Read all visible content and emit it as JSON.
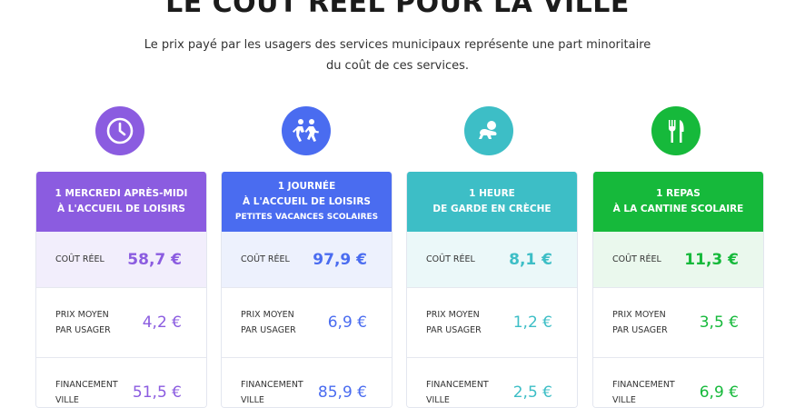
{
  "header": {
    "title": "LE COÛT RÉEL POUR LA VILLE",
    "subtitle_line1": "Le prix payé par les usagers des services municipaux représente une part minoritaire",
    "subtitle_line2": "du coût de ces services."
  },
  "cards": [
    {
      "icon": "clock-icon",
      "accent": "#8b5ce0",
      "row_bg": "#f2eefc",
      "title_line1": "1 MERCREDI APRÈS-MIDI",
      "title_line2": "À L'ACCUEIL DE LOISIRS",
      "title_line3": "",
      "rows": [
        {
          "label": "COÛT RÉEL",
          "label_line2": "",
          "value": "58,7 €"
        },
        {
          "label": "PRIX MOYEN",
          "label_line2": "PAR USAGER",
          "value": "4,2 €"
        },
        {
          "label": "FINANCEMENT",
          "label_line2": "VILLE",
          "value": "51,5 €"
        }
      ]
    },
    {
      "icon": "children-running-icon",
      "accent": "#4a6cf0",
      "row_bg": "#edf1fd",
      "title_line1": "1 JOURNÉE",
      "title_line2": "À L'ACCUEIL DE LOISIRS",
      "title_line3": "PETITES VACANCES SCOLAIRES",
      "rows": [
        {
          "label": "COÛT RÉEL",
          "label_line2": "",
          "value": "97,9 €"
        },
        {
          "label": "PRIX MOYEN",
          "label_line2": "PAR USAGER",
          "value": "6,9 €"
        },
        {
          "label": "FINANCEMENT",
          "label_line2": "VILLE",
          "value": "85,9 €"
        }
      ]
    },
    {
      "icon": "crawling-baby-icon",
      "accent": "#3dbec6",
      "row_bg": "#ebf8f9",
      "title_line1": "1 HEURE",
      "title_line2": "DE GARDE EN CRÈCHE",
      "title_line3": "",
      "rows": [
        {
          "label": "COÛT RÉEL",
          "label_line2": "",
          "value": "8,1 €"
        },
        {
          "label": "PRIX MOYEN",
          "label_line2": "PAR USAGER",
          "value": "1,2 €"
        },
        {
          "label": "FINANCEMENT",
          "label_line2": "VILLE",
          "value": "2,5 €"
        }
      ]
    },
    {
      "icon": "fork-knife-icon",
      "accent": "#16b93b",
      "row_bg": "#eaf8ed",
      "title_line1": "1 REPAS",
      "title_line2": "À LA CANTINE SCOLAIRE",
      "title_line3": "",
      "rows": [
        {
          "label": "COÛT RÉEL",
          "label_line2": "",
          "value": "11,3 €"
        },
        {
          "label": "PRIX MOYEN",
          "label_line2": "PAR USAGER",
          "value": "3,5 €"
        },
        {
          "label": "FINANCEMENT",
          "label_line2": "VILLE",
          "value": "6,9 €"
        }
      ]
    }
  ]
}
